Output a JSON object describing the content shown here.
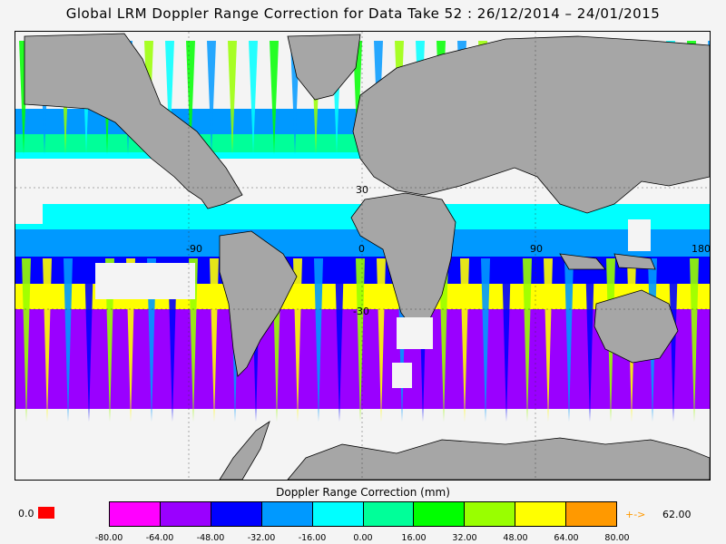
{
  "header": {
    "title": "Global LRM Doppler Range Correction for Data Take 52 : 26/12/2014 – 24/01/2015"
  },
  "map": {
    "grid_labels": [
      "30",
      "-90",
      "0",
      "90",
      "180",
      "-30"
    ],
    "colors": {
      "land": "#a6a6a6",
      "no_data": "#f4f4f4",
      "orbit_tracks": "#000000"
    }
  },
  "legend": {
    "title": "Doppler Range Correction (mm)",
    "tick_labels": [
      "-80.00",
      "-64.00",
      "-48.00",
      "-32.00",
      "-16.00",
      "0.00",
      "16.00",
      "32.00",
      "48.00",
      "64.00",
      "80.00"
    ],
    "colors": [
      "#ff00ff",
      "#9a00ff",
      "#0000ff",
      "#0099ff",
      "#00ffff",
      "#00ff99",
      "#00ff00",
      "#99ff00",
      "#ffff00",
      "#ff9900"
    ],
    "below_value": "0.0",
    "below_color": "#ff0000",
    "above_arrow": "+->",
    "above_value": "62.00",
    "above_color": "#ff9900"
  }
}
